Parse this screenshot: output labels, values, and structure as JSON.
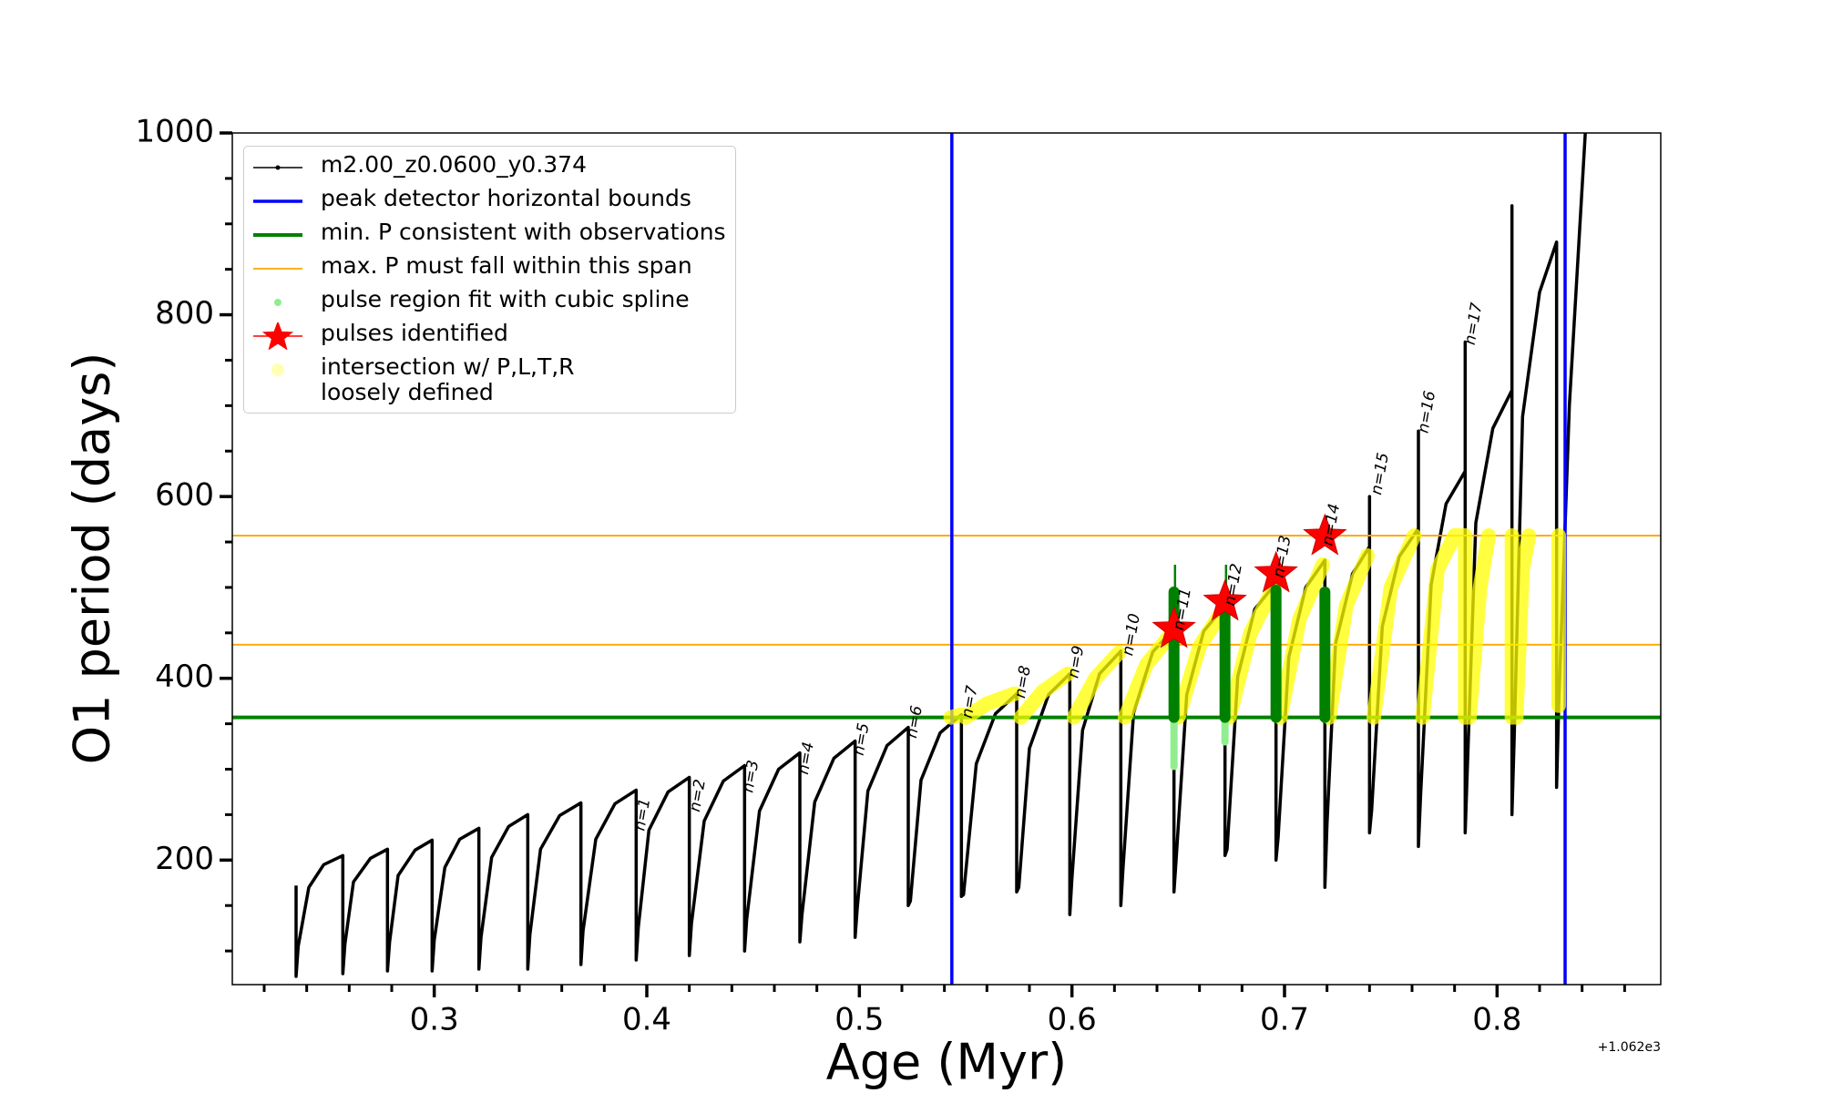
{
  "chart_data": {
    "type": "line",
    "x_label": "Age (Myr)",
    "y_label": "O1 period (days)",
    "x_offset_label": "+1.062e3",
    "xlim": [
      0.205,
      0.877
    ],
    "ylim": [
      63,
      1000
    ],
    "xticks": [
      0.3,
      0.4,
      0.5,
      0.6,
      0.7,
      0.8
    ],
    "xminorticks": [
      0.22,
      0.24,
      0.26,
      0.28,
      0.32,
      0.34,
      0.36,
      0.38,
      0.42,
      0.44,
      0.46,
      0.48,
      0.52,
      0.54,
      0.56,
      0.58,
      0.62,
      0.64,
      0.66,
      0.68,
      0.72,
      0.74,
      0.76,
      0.78,
      0.82,
      0.84,
      0.86
    ],
    "yticks": [
      200,
      400,
      600,
      800,
      1000
    ],
    "yminorticks": [
      100,
      150,
      250,
      300,
      350,
      450,
      500,
      550,
      650,
      700,
      750,
      850,
      900,
      950
    ],
    "legend": "upper left",
    "series": [
      {
        "name": "m2.00_z0.0600_y0.374",
        "kind": "line",
        "color": "#000000",
        "linewidth": 3.5,
        "x": [
          0.235,
          0.235,
          0.236,
          0.241,
          0.248,
          0.257,
          0.257,
          0.258,
          0.262,
          0.27,
          0.278,
          0.278,
          0.279,
          0.283,
          0.291,
          0.299,
          0.299,
          0.3,
          0.305,
          0.312,
          0.321,
          0.321,
          0.322,
          0.327,
          0.335,
          0.344,
          0.344,
          0.345,
          0.35,
          0.359,
          0.369,
          0.369,
          0.37,
          0.376,
          0.385,
          0.395,
          0.395,
          0.396,
          0.401,
          0.41,
          0.42,
          0.42,
          0.421,
          0.427,
          0.436,
          0.446,
          0.446,
          0.447,
          0.453,
          0.462,
          0.472,
          0.472,
          0.473,
          0.479,
          0.488,
          0.498,
          0.498,
          0.499,
          0.504,
          0.513,
          0.523,
          0.523,
          0.524,
          0.529,
          0.538,
          0.548,
          0.548,
          0.549,
          0.555,
          0.564,
          0.574,
          0.574,
          0.575,
          0.58,
          0.589,
          0.599,
          0.599,
          0.6,
          0.605,
          0.613,
          0.623,
          0.623,
          0.624,
          0.629,
          0.638,
          0.648,
          0.648,
          0.649,
          0.654,
          0.662,
          0.672,
          0.672,
          0.673,
          0.678,
          0.686,
          0.696,
          0.696,
          0.697,
          0.702,
          0.71,
          0.719,
          0.719,
          0.72,
          0.724,
          0.732,
          0.74,
          0.74,
          0.74,
          0.741,
          0.746,
          0.754,
          0.763,
          0.763,
          0.763,
          0.764,
          0.769,
          0.776,
          0.785,
          0.785,
          0.785,
          0.786,
          0.79,
          0.798,
          0.807,
          0.807,
          0.807,
          0.808,
          0.812,
          0.82,
          0.828,
          0.828,
          0.829,
          0.834,
          0.8415
        ],
        "y": [
          172,
          72,
          105,
          170,
          195,
          205,
          75,
          108,
          176,
          202,
          212,
          78,
          110,
          183,
          211,
          222,
          78,
          112,
          192,
          223,
          235,
          80,
          115,
          203,
          237,
          250,
          80,
          118,
          212,
          249,
          263,
          85,
          122,
          223,
          262,
          277,
          90,
          126,
          233,
          275,
          291,
          95,
          130,
          243,
          287,
          304,
          100,
          135,
          254,
          300,
          318,
          110,
          140,
          264,
          312,
          331,
          115,
          147,
          276,
          326,
          346,
          150,
          155,
          288,
          340,
          360,
          160,
          162,
          306,
          361,
          383,
          165,
          170,
          323,
          382,
          405,
          140,
          180,
          343,
          405,
          430,
          150,
          190,
          362,
          429,
          455,
          165,
          200,
          382,
          452,
          480,
          205,
          212,
          402,
          476,
          505,
          200,
          225,
          423,
          500,
          530,
          170,
          240,
          438,
          515,
          545,
          600,
          230,
          255,
          457,
          534,
          565,
          672,
          215,
          270,
          503,
          592,
          628,
          770,
          230,
          300,
          571,
          675,
          717,
          920,
          250,
          330,
          688,
          825,
          880,
          280,
          370,
          700,
          1000
        ]
      },
      {
        "name": "peak detector horizontal bounds",
        "kind": "vline",
        "color": "#0000ff",
        "linewidth": 3.5,
        "x": [
          0.5435,
          0.832
        ]
      },
      {
        "name": "min. P consistent with observations",
        "kind": "hline",
        "color": "#008000",
        "linewidth": 4,
        "y": [
          357
        ]
      },
      {
        "name": "max. P must fall within this span",
        "kind": "hline",
        "color": "#ffa500",
        "linewidth": 1.8,
        "y": [
          437,
          557
        ]
      },
      {
        "name": "pulse region fit with cubic spline",
        "kind": "segments",
        "color": "#90ee90",
        "linewidth": 8,
        "x": [
          0.648,
          0.648,
          null,
          0.672,
          0.672
        ],
        "y": [
          303,
          357,
          null,
          330,
          357
        ]
      },
      {
        "name": "pulses identified",
        "kind": "star",
        "color": "#ff0000",
        "x": [
          0.648,
          0.672,
          0.696,
          0.719
        ],
        "y": [
          454,
          484,
          515,
          556
        ]
      },
      {
        "name": "intersection w/ P,L,T,R\nloosely defined",
        "kind": "band",
        "color": "#ffff00",
        "linewidth": 16,
        "x": [
          0.543,
          0.548,
          null,
          0.55,
          0.56,
          0.573,
          null,
          0.576,
          0.586,
          0.598,
          null,
          0.601,
          0.611,
          0.622,
          null,
          0.625,
          0.635,
          0.647,
          null,
          0.65,
          0.66,
          0.671,
          null,
          0.674,
          0.684,
          0.695,
          null,
          0.698,
          0.707,
          0.718,
          null,
          0.721,
          0.729,
          0.739,
          null,
          0.742,
          0.75,
          0.761,
          null,
          0.765,
          0.772,
          0.78,
          0.785,
          null,
          0.785,
          0.785,
          null,
          0.787,
          0.792,
          0.796,
          null,
          0.807,
          0.807,
          null,
          0.809,
          0.812,
          0.815,
          null,
          0.829,
          0.829
        ],
        "y": [
          357,
          360,
          null,
          357,
          372,
          383,
          null,
          357,
          385,
          405,
          null,
          357,
          400,
          428,
          null,
          357,
          415,
          450,
          null,
          357,
          435,
          475,
          null,
          357,
          450,
          500,
          null,
          357,
          465,
          525,
          null,
          357,
          480,
          535,
          null,
          357,
          500,
          557,
          null,
          357,
          520,
          557,
          557,
          null,
          357,
          557,
          null,
          357,
          500,
          557,
          null,
          357,
          557,
          null,
          357,
          520,
          557,
          null,
          370,
          557
        ]
      }
    ],
    "pulse_bars": {
      "color": "#008000",
      "linewidth": 12,
      "x": [
        0.648,
        0.648,
        null,
        0.672,
        0.672,
        null,
        0.696,
        0.696,
        null,
        0.719,
        0.719
      ],
      "y": [
        357,
        495,
        null,
        357,
        492,
        null,
        357,
        497,
        null,
        357,
        495
      ]
    },
    "pulse_lines": {
      "color": "#008000",
      "linewidth": 2.5,
      "x": [
        0.6485,
        0.6485,
        null,
        0.6725,
        0.6725
      ],
      "y": [
        495,
        525,
        null,
        492,
        525
      ]
    },
    "annotations": [
      {
        "text": "n=1",
        "x": 0.398,
        "y": 250
      },
      {
        "text": "n=2",
        "x": 0.424,
        "y": 271
      },
      {
        "text": "n=3",
        "x": 0.449,
        "y": 292
      },
      {
        "text": "n=4",
        "x": 0.475,
        "y": 312
      },
      {
        "text": "n=5",
        "x": 0.501,
        "y": 333
      },
      {
        "text": "n=6",
        "x": 0.526,
        "y": 352
      },
      {
        "text": "n=7",
        "x": 0.552,
        "y": 374
      },
      {
        "text": "n=8",
        "x": 0.577,
        "y": 396
      },
      {
        "text": "n=9",
        "x": 0.602,
        "y": 418
      },
      {
        "text": "n=10",
        "x": 0.628,
        "y": 448
      },
      {
        "text": "n=11",
        "x": 0.652,
        "y": 476
      },
      {
        "text": "n=12",
        "x": 0.676,
        "y": 503
      },
      {
        "text": "n=13",
        "x": 0.699,
        "y": 534
      },
      {
        "text": "n=14",
        "x": 0.722,
        "y": 569
      },
      {
        "text": "n=15",
        "x": 0.745,
        "y": 625
      },
      {
        "text": "n=16",
        "x": 0.767,
        "y": 693
      },
      {
        "text": "n=17",
        "x": 0.789,
        "y": 790
      }
    ]
  }
}
